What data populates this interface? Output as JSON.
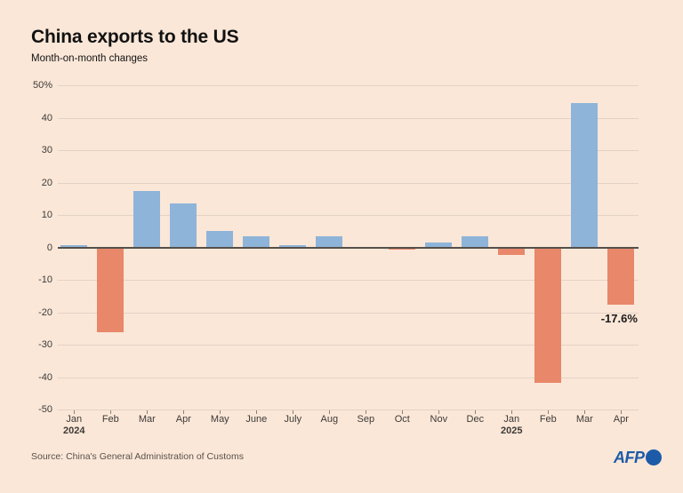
{
  "header": {
    "title": "China exports to the US",
    "subtitle": "Month-on-month changes"
  },
  "footer": {
    "source": "Source: China's General Administration of Customs",
    "logo_text": "AFP"
  },
  "colors": {
    "background": "#fbe7d8",
    "positive_bar": "#8fb4d9",
    "negative_bar": "#e8876a",
    "gridline": "#e2d3c6",
    "zero_line": "#55504a",
    "tick": "#8a8178",
    "axis_text": "#3d3a36",
    "title_text": "#121212",
    "annotation_text": "#1a1a1a",
    "source_text": "#57504a",
    "logo_blue": "#1d5ba8"
  },
  "chart_data": {
    "type": "bar",
    "title": "China exports to the US",
    "subtitle": "Month-on-month changes",
    "unit": "%",
    "categories": [
      "Jan",
      "Feb",
      "Mar",
      "Apr",
      "May",
      "June",
      "July",
      "Aug",
      "Sep",
      "Oct",
      "Nov",
      "Dec",
      "Jan",
      "Feb",
      "Mar",
      "Apr"
    ],
    "year_labels": [
      {
        "index": 0,
        "label": "2024"
      },
      {
        "index": 12,
        "label": "2025"
      }
    ],
    "values": [
      0.8,
      -26.2,
      17.4,
      13.5,
      5.0,
      3.5,
      0.6,
      3.3,
      -0.4,
      -0.6,
      1.5,
      3.4,
      -2.3,
      -41.8,
      44.5,
      -17.6
    ],
    "y_ticks": [
      50,
      40,
      30,
      20,
      10,
      0,
      -10,
      -20,
      -30,
      -40,
      -50
    ],
    "y_tick_labels": [
      "50%",
      "40",
      "30",
      "20",
      "10",
      "0",
      "-10",
      "-20",
      "-30",
      "-40",
      "-50"
    ],
    "ylim": [
      -50,
      50
    ],
    "annotation": {
      "text": "-17.6%",
      "category_index": 15
    },
    "grid": true,
    "legend": false
  }
}
